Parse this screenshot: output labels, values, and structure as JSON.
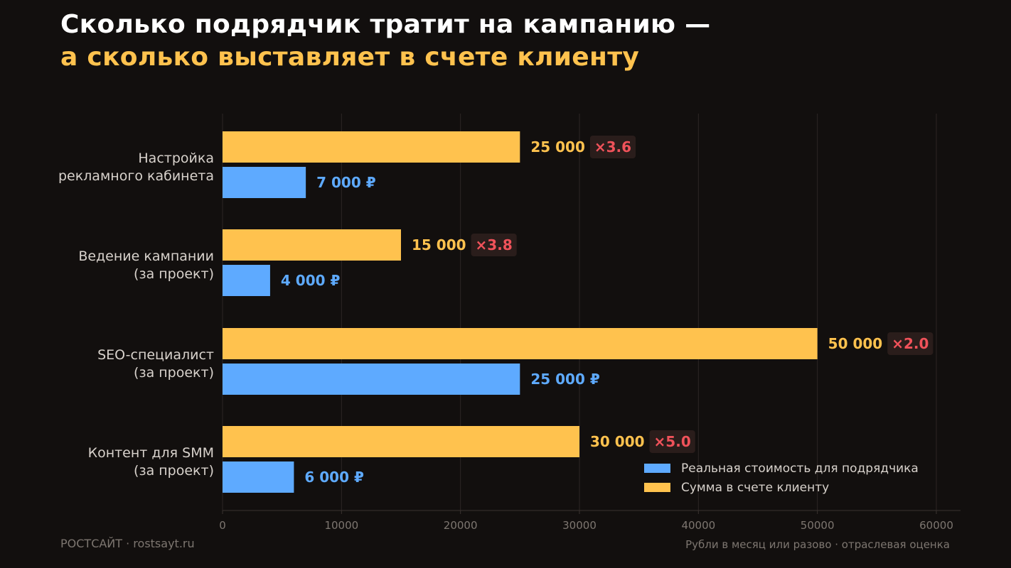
{
  "title": {
    "line1": "Сколько подрядчик тратит на кампанию —",
    "line2": "а сколько выставляет в счете клиенту"
  },
  "footer": {
    "brand": "РОСТСАЙТ · rostsayt.ru",
    "note": "Рубли в месяц или разово · отраслевая оценка"
  },
  "colors": {
    "background": "#120f0e",
    "invoice": "#ffc24e",
    "real": "#5eaaff",
    "multiplier": "#f0525a",
    "multiplier_bg": "#2a1d1b",
    "grid": "#2c2624",
    "axis_text": "#7d7670",
    "category_text": "#d8d2cc"
  },
  "legend": {
    "real_label": "Реальная стоимость для подрядчика",
    "invoice_label": "Сумма в счете клиенту"
  },
  "chart_data": {
    "type": "bar",
    "orientation": "horizontal",
    "categories": [
      [
        "Настройка",
        "рекламного кабинета"
      ],
      [
        "Ведение кампании",
        "(за проект)"
      ],
      [
        "SEO-специалист",
        "(за проект)"
      ],
      [
        "Контент для SMM",
        "(за проект)"
      ]
    ],
    "series": [
      {
        "name": "Сумма в счете клиенту",
        "values": [
          25000,
          15000,
          50000,
          30000
        ],
        "labels": [
          "25 000",
          "15 000",
          "50 000",
          "30 000"
        ]
      },
      {
        "name": "Реальная стоимость для подрядчика",
        "values": [
          7000,
          4000,
          25000,
          6000
        ],
        "labels": [
          "7 000 ₽",
          "4 000 ₽",
          "25 000 ₽",
          "6 000 ₽"
        ]
      }
    ],
    "multipliers": [
      "×3.6",
      "×3.8",
      "×2.0",
      "×5.0"
    ],
    "xlim": [
      0,
      62000
    ],
    "xticks": [
      0,
      10000,
      20000,
      30000,
      40000,
      50000,
      60000
    ],
    "grid": true,
    "legend_position": "bottom-right"
  }
}
